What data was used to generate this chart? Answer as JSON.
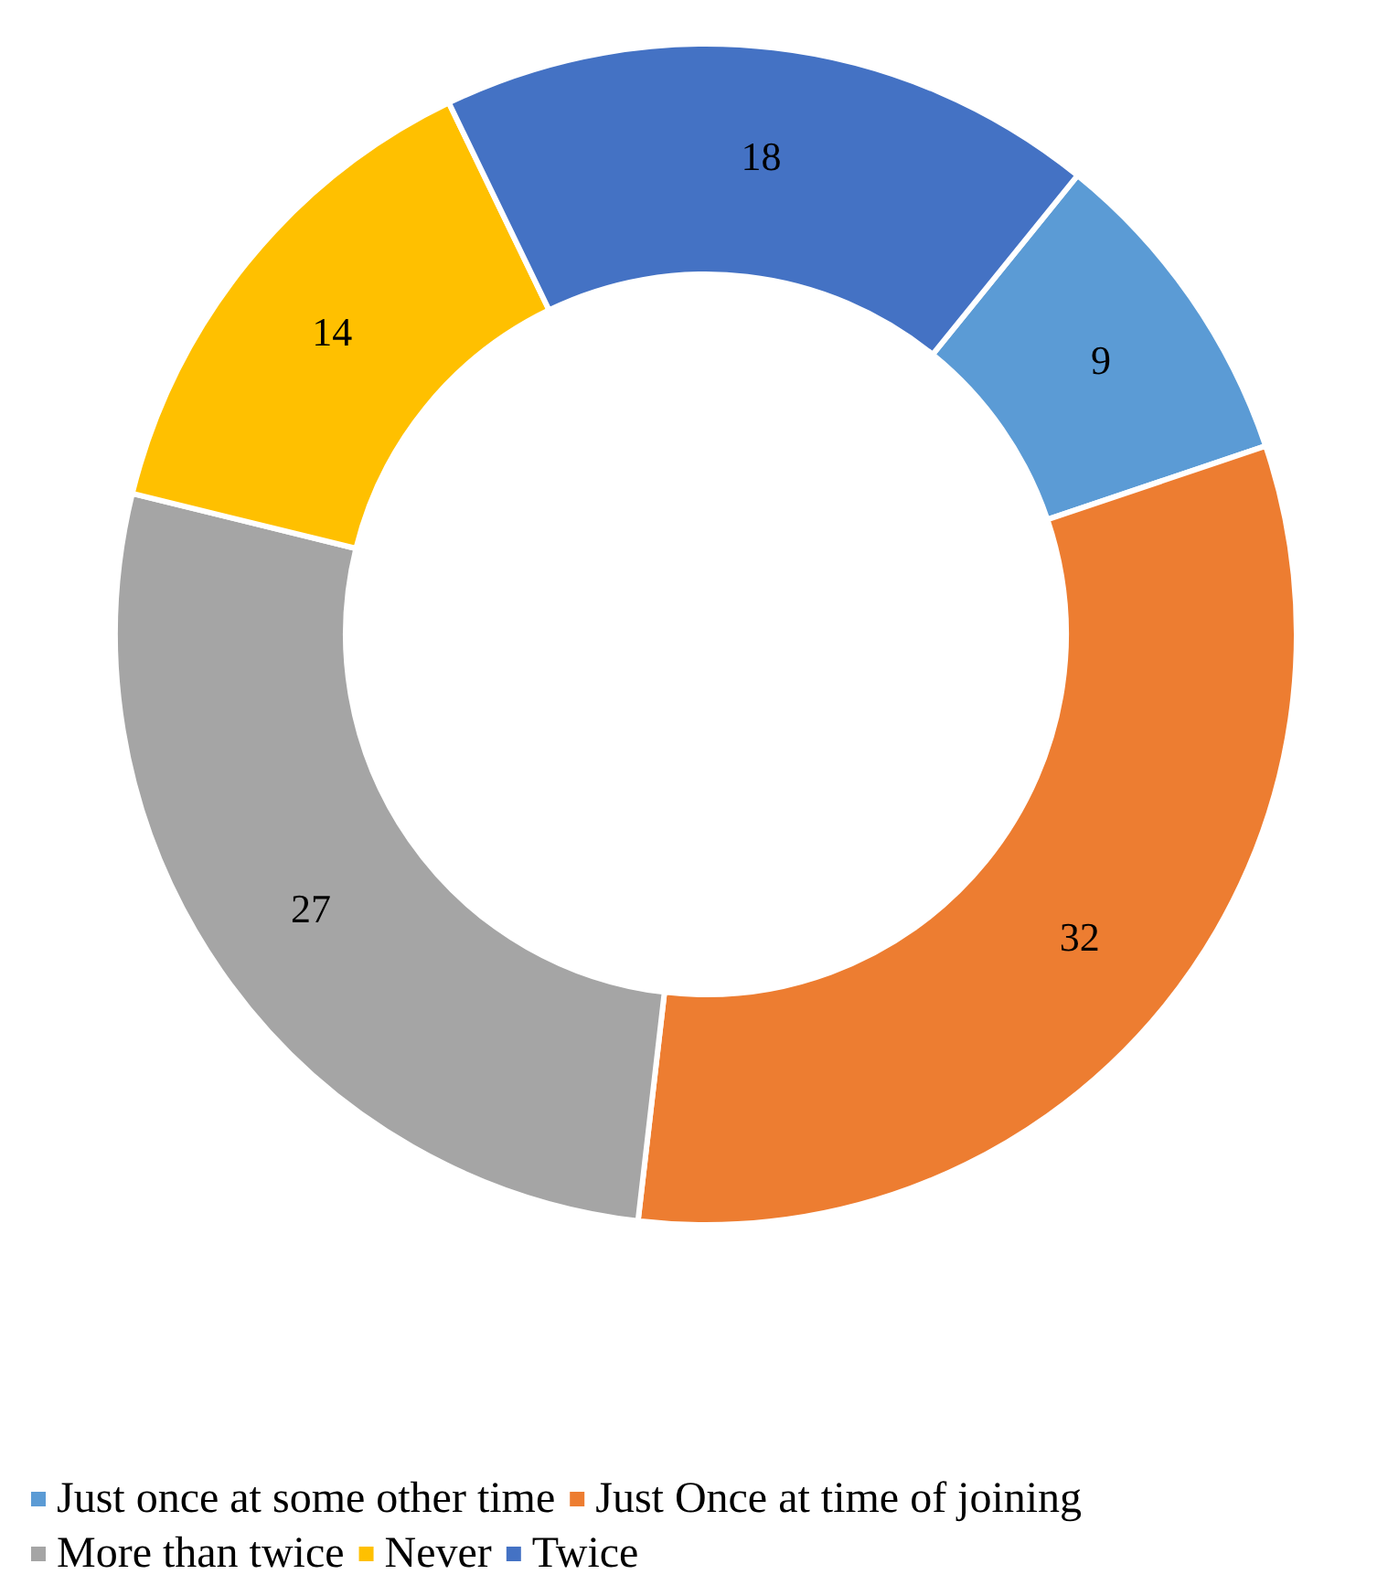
{
  "chart_data": {
    "type": "donut",
    "categories": [
      "Just once at some other time",
      "Just Once at time of joining",
      "More than twice",
      "Never",
      "Twice"
    ],
    "values": [
      9,
      32,
      27,
      14,
      18
    ],
    "colors": [
      "#5b9bd5",
      "#ed7d31",
      "#a5a5a5",
      "#ffc000",
      "#4472c4"
    ],
    "data_labels": true,
    "legend": "bottom"
  }
}
